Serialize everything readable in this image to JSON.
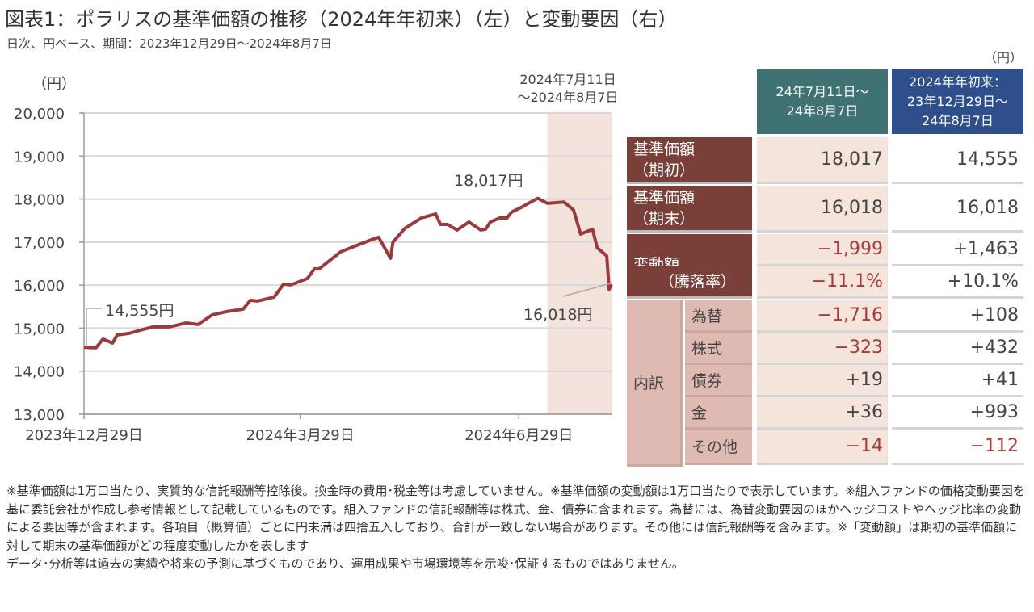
{
  "title": "図表1：ポラリスの基準価額の推移（2024年年初来）（左）と変動要因（右）",
  "subtitle": "日次、円ベース、期間：2023年12月29日～2024年8月7日",
  "chart_data": {
    "type": "line",
    "yunit": "（円）",
    "ylim": [
      13000,
      20000
    ],
    "yticks": [
      13000,
      14000,
      15000,
      16000,
      17000,
      18000,
      19000,
      20000
    ],
    "ytick_labels": [
      "13,000",
      "14,000",
      "15,000",
      "16,000",
      "17,000",
      "18,000",
      "19,000",
      "20,000"
    ],
    "xticks": [
      0,
      91,
      183
    ],
    "xtick_labels": [
      "2023年12月29日",
      "2024年3月29日",
      "2024年6月29日"
    ],
    "xmax": 222,
    "shade": {
      "from": 195,
      "to": 222,
      "label_line1": "2024年7月11日",
      "label_line2": "～2024年8月7日",
      "color": "#f3e3dc"
    },
    "line_color": "#9b3a3c",
    "annotations": {
      "start": "14,555円",
      "peak": "18,017円",
      "end": "16,018円"
    },
    "series": [
      {
        "name": "基準価額",
        "x": [
          0,
          5,
          8,
          12,
          14,
          19,
          25,
          29,
          36,
          43,
          48,
          54,
          60,
          67,
          70,
          73,
          80,
          84,
          87,
          94,
          97,
          99,
          108,
          114,
          121,
          124,
          129,
          130,
          135,
          142,
          148,
          150,
          153,
          157,
          162,
          167,
          169,
          171,
          175,
          178,
          180,
          184,
          187,
          191,
          195,
          202,
          206,
          209,
          214,
          216,
          220,
          221,
          222
        ],
        "y": [
          14555,
          14541,
          14747,
          14653,
          14841,
          14879,
          14972,
          15029,
          15029,
          15122,
          15085,
          15310,
          15385,
          15441,
          15648,
          15629,
          15723,
          16023,
          16004,
          16154,
          16379,
          16379,
          16773,
          16905,
          17055,
          17111,
          16623,
          16998,
          17317,
          17561,
          17655,
          17411,
          17411,
          17280,
          17467,
          17280,
          17299,
          17467,
          17561,
          17561,
          17700,
          17805,
          17900,
          18017,
          17900,
          17930,
          17749,
          17186,
          17300,
          16867,
          16679,
          15900,
          16018
        ]
      }
    ]
  },
  "table": {
    "unit": "（円）",
    "headers": [
      "24年7月11日～\n24年8月7日",
      "2024年年初来：\n23年12月29日～\n24年8月7日"
    ],
    "rows": [
      {
        "label": "基準価額\n（期初）",
        "v1": "18,017",
        "v2": "14,555"
      },
      {
        "label": "基準価額\n（期末）",
        "v1": "16,018",
        "v2": "16,018"
      },
      {
        "label": "変動額",
        "v1": "−1,999",
        "v2": "+1,463"
      },
      {
        "label": "（騰落率）",
        "v1": "−11.1%",
        "v2": "+10.1%"
      }
    ],
    "breakdown_label": "内訳",
    "breakdown": [
      {
        "label": "為替",
        "v1": "−1,716",
        "v2": "+108"
      },
      {
        "label": "株式",
        "v1": "−323",
        "v2": "+432"
      },
      {
        "label": "債券",
        "v1": "+19",
        "v2": "+41"
      },
      {
        "label": "金",
        "v1": "+36",
        "v2": "+993"
      },
      {
        "label": "その他",
        "v1": "−14",
        "v2": "−112"
      }
    ]
  },
  "notes": [
    "※基準価額は1万口当たり、実質的な信託報酬等控除後。換金時の費用･税金等は考慮していません。※基準価額の変動額は1万口当たりで表示しています。※組入ファンドの価格変動要因を基に委託会社が作成し参考情報として記載しているものです。組入ファンドの信託報酬等は株式、金、債券に含まれます。為替には、為替変動要因のほかヘッジコストやヘッジ比率の変動による要因等が含まれます。各項目（概算値）ごとに円未満は四捨五入しており、合計が一致しない場合があります。その他には信託報酬等を含みます。※「変動額」は期初の基準価額に対して期末の基準価額がどの程度変動したかを表します",
    "データ･分析等は過去の実績や将来の予測に基づくものであり、運用成果や市場環境等を示唆･保証するものではありません。"
  ]
}
